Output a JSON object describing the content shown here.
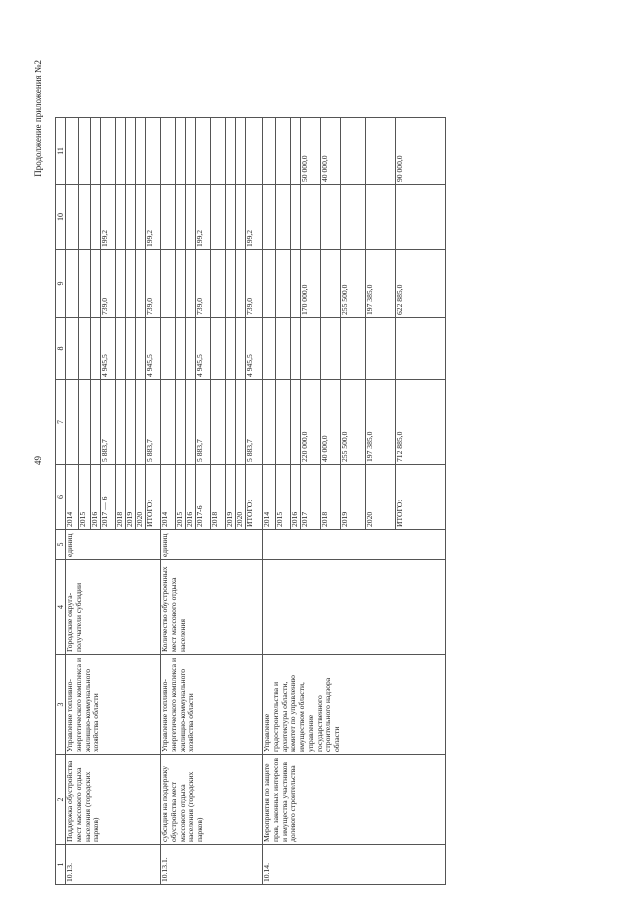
{
  "header": {
    "continuation": "Продолжение приложения №2",
    "page_number": "49"
  },
  "columns": [
    "1",
    "2",
    "3",
    "4",
    "5",
    "6",
    "7",
    "8",
    "9",
    "10",
    "11"
  ],
  "groups": [
    {
      "num": "10.13.",
      "name": "Поддержка обустройства мест массового отдыха населения (городских парков)",
      "executor": "Управление топливно-энергетического комплекса и жилищно-коммунального хозяйства области",
      "indicator": "Городские округа-получатели субсидии",
      "unit": "единиц",
      "rows": [
        {
          "year": "2014",
          "c7": "",
          "c8": "",
          "c9": "",
          "c10": "",
          "c11": ""
        },
        {
          "year": "2015",
          "c7": "",
          "c8": "",
          "c9": "",
          "c10": "",
          "c11": ""
        },
        {
          "year": "2016",
          "c7": "",
          "c8": "",
          "c9": "",
          "c10": "",
          "c11": ""
        },
        {
          "year": "2017 — 6",
          "c7": "5 883,7",
          "c8": "4 945,5",
          "c9": "739,0",
          "c10": "199,2",
          "c11": ""
        },
        {
          "year": "2018",
          "c7": "",
          "c8": "",
          "c9": "",
          "c10": "",
          "c11": ""
        },
        {
          "year": "2019",
          "c7": "",
          "c8": "",
          "c9": "",
          "c10": "",
          "c11": ""
        },
        {
          "year": "2020",
          "c7": "",
          "c8": "",
          "c9": "",
          "c10": "",
          "c11": ""
        },
        {
          "year": "ИТОГО:",
          "c7": "5 883,7",
          "c8": "4 945,5",
          "c9": "739,0",
          "c10": "199,2",
          "c11": ""
        }
      ]
    },
    {
      "num": "10.13.1.",
      "name": "субсидия на поддержку обустройства мест массового отдыха населения (городских парков)",
      "executor": "Управление топливно-энергетического комплекса и жилищно-коммунального хозяйства области",
      "indicator": "Количество обустроенных мест массового отдыха населения",
      "unit": "единиц",
      "rows": [
        {
          "year": "2014",
          "c7": "",
          "c8": "",
          "c9": "",
          "c10": "",
          "c11": ""
        },
        {
          "year": "2015",
          "c7": "",
          "c8": "",
          "c9": "",
          "c10": "",
          "c11": ""
        },
        {
          "year": "2016",
          "c7": "",
          "c8": "",
          "c9": "",
          "c10": "",
          "c11": ""
        },
        {
          "year": "2017-6",
          "c7": "5 883,7",
          "c8": "4 945,5",
          "c9": "739,0",
          "c10": "199,2",
          "c11": ""
        },
        {
          "year": "2018",
          "c7": "",
          "c8": "",
          "c9": "",
          "c10": "",
          "c11": ""
        },
        {
          "year": "2019",
          "c7": "",
          "c8": "",
          "c9": "",
          "c10": "",
          "c11": ""
        },
        {
          "year": "2020",
          "c7": "",
          "c8": "",
          "c9": "",
          "c10": "",
          "c11": ""
        },
        {
          "year": "ИТОГО:",
          "c7": "5 883,7",
          "c8": "4 945,5",
          "c9": "739,0",
          "c10": "199,2",
          "c11": ""
        }
      ]
    },
    {
      "num": "10.14.",
      "name": "Мероприятия по защите прав, законных интересов и имущества участников долевого строительства",
      "executor": "Управление градостроительства и архитектуры области, комитет по управлению имуществом области, управление государственного строительного надзора области",
      "indicator": "",
      "unit": "",
      "rows": [
        {
          "year": "2014",
          "c7": "",
          "c8": "",
          "c9": "",
          "c10": "",
          "c11": ""
        },
        {
          "year": "2015",
          "c7": "",
          "c8": "",
          "c9": "",
          "c10": "",
          "c11": ""
        },
        {
          "year": "2016",
          "c7": "",
          "c8": "",
          "c9": "",
          "c10": "",
          "c11": ""
        },
        {
          "year": "2017",
          "c7": "220 000,0",
          "c8": "",
          "c9": "170 000,0",
          "c10": "",
          "c11": "50 000,0"
        },
        {
          "year": "2018",
          "c7": "40 000,0",
          "c8": "",
          "c9": "",
          "c10": "",
          "c11": "40 000,0"
        },
        {
          "year": "2019",
          "c7": "255 500,0",
          "c8": "",
          "c9": "255 500,0",
          "c10": "",
          "c11": ""
        },
        {
          "year": "2020",
          "c7": "197 385,0",
          "c8": "",
          "c9": "197 385,0",
          "c10": "",
          "c11": ""
        },
        {
          "year": "ИТОГО:",
          "c7": "712 885,0",
          "c8": "",
          "c9": "622 885,0",
          "c10": "",
          "c11": "90 000,0"
        }
      ]
    }
  ]
}
